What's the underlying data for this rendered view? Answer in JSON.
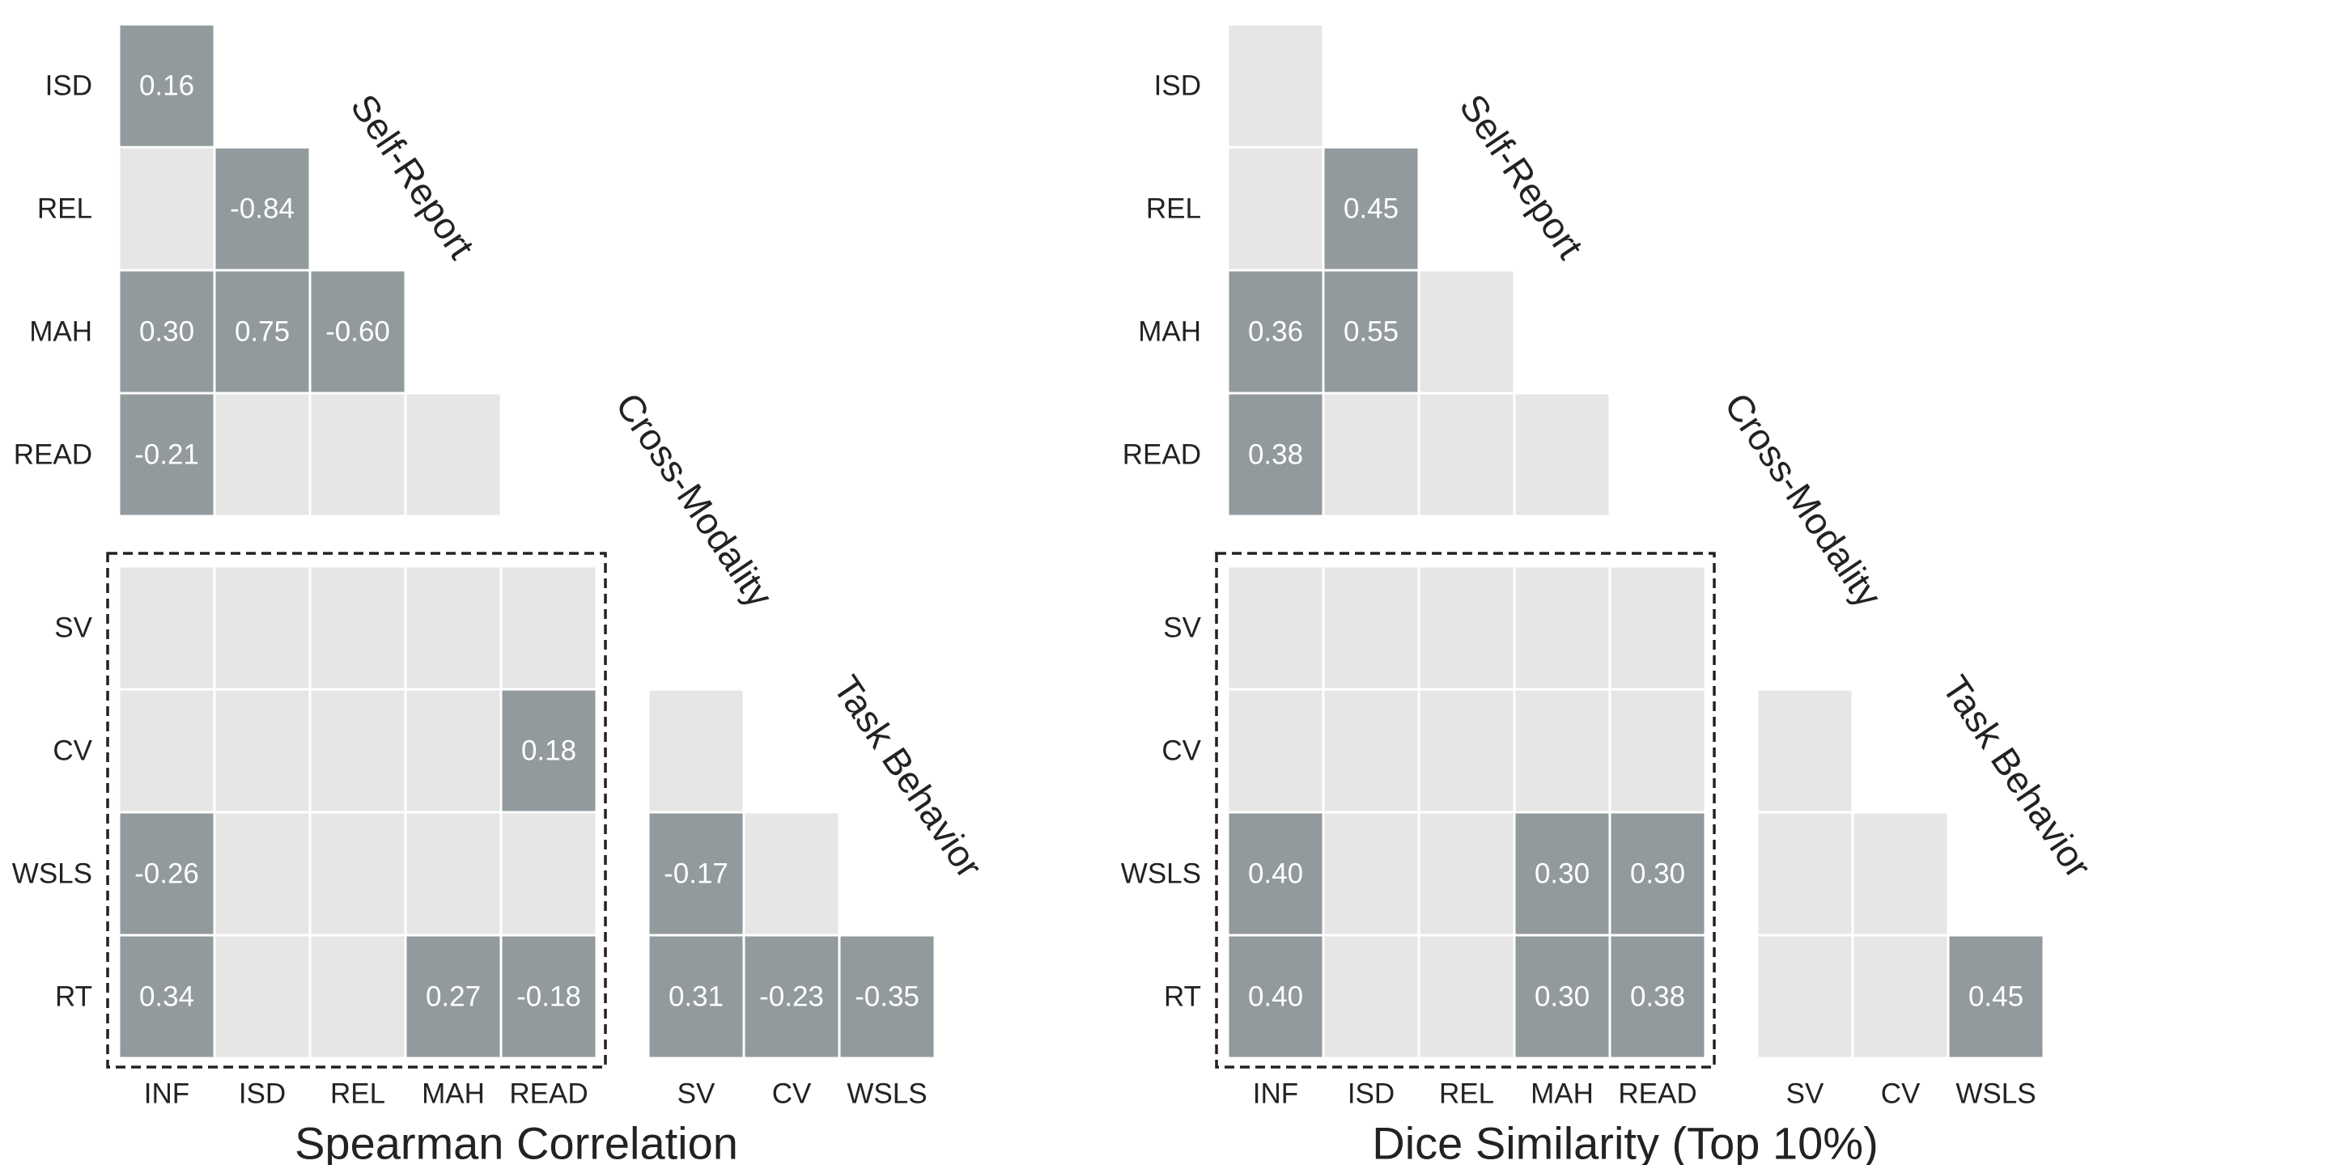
{
  "colors": {
    "significant": "#929a9d",
    "nonsignificant": "#e6e6e6",
    "cell_border": "#ffffff",
    "value_text": "#ffffff",
    "label_text": "#222222",
    "box_stroke": "#222222"
  },
  "chart_data": [
    {
      "type": "heatmap",
      "title": "Spearman Correlation",
      "group_labels": {
        "self_report": "Self-Report",
        "cross_modality": "Cross-Modality",
        "task_behavior": "Task Behavior"
      },
      "self_report": {
        "rows": [
          "ISD",
          "REL",
          "MAH",
          "READ"
        ],
        "cols": [
          "INF",
          "ISD",
          "REL",
          "MAH"
        ],
        "values": [
          [
            "0.16"
          ],
          [
            "",
            "-0.84"
          ],
          [
            "0.30",
            "0.75",
            "-0.60"
          ],
          [
            "-0.21",
            "",
            "",
            ""
          ]
        ]
      },
      "cross_modality": {
        "rows": [
          "SV",
          "CV",
          "WSLS",
          "RT"
        ],
        "cols": [
          "INF",
          "ISD",
          "REL",
          "MAH",
          "READ"
        ],
        "values": [
          [
            "",
            "",
            "",
            "",
            ""
          ],
          [
            "",
            "",
            "",
            "",
            "0.18"
          ],
          [
            "-0.26",
            "",
            "",
            "",
            ""
          ],
          [
            "0.34",
            "",
            "",
            "0.27",
            "-0.18"
          ]
        ]
      },
      "task_behavior": {
        "rows": [
          "CV",
          "WSLS",
          "RT"
        ],
        "cols": [
          "SV",
          "CV",
          "WSLS"
        ],
        "values": [
          [
            ""
          ],
          [
            "-0.17",
            ""
          ],
          [
            "0.31",
            "-0.23",
            "-0.35"
          ]
        ]
      }
    },
    {
      "type": "heatmap",
      "title": "Dice Similarity (Top 10%)",
      "group_labels": {
        "self_report": "Self-Report",
        "cross_modality": "Cross-Modality",
        "task_behavior": "Task Behavior"
      },
      "self_report": {
        "rows": [
          "ISD",
          "REL",
          "MAH",
          "READ"
        ],
        "cols": [
          "INF",
          "ISD",
          "REL",
          "MAH"
        ],
        "values": [
          [
            ""
          ],
          [
            "",
            "0.45"
          ],
          [
            "0.36",
            "0.55",
            ""
          ],
          [
            "0.38",
            "",
            "",
            ""
          ]
        ]
      },
      "cross_modality": {
        "rows": [
          "SV",
          "CV",
          "WSLS",
          "RT"
        ],
        "cols": [
          "INF",
          "ISD",
          "REL",
          "MAH",
          "READ"
        ],
        "values": [
          [
            "",
            "",
            "",
            "",
            ""
          ],
          [
            "",
            "",
            "",
            "",
            ""
          ],
          [
            "0.40",
            "",
            "",
            "0.30",
            "0.30"
          ],
          [
            "0.40",
            "",
            "",
            "0.30",
            "0.38"
          ]
        ]
      },
      "task_behavior": {
        "rows": [
          "CV",
          "WSLS",
          "RT"
        ],
        "cols": [
          "SV",
          "CV",
          "WSLS"
        ],
        "values": [
          [
            ""
          ],
          [
            "",
            ""
          ],
          [
            "",
            "",
            "0.45"
          ]
        ]
      }
    }
  ]
}
